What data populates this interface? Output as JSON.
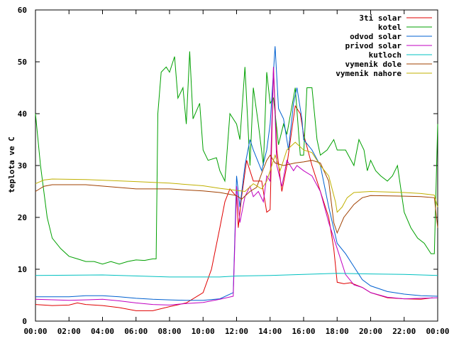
{
  "chart_data": {
    "type": "line",
    "title": "",
    "xlabel": "",
    "ylabel": "teplota ve C",
    "xlim": [
      0,
      24
    ],
    "ylim": [
      0,
      60
    ],
    "x_ticks": [
      0,
      2,
      4,
      6,
      8,
      10,
      12,
      14,
      16,
      18,
      20,
      22,
      24
    ],
    "x_tick_labels": [
      "00:00",
      "02:00",
      "04:00",
      "06:00",
      "08:00",
      "10:00",
      "12:00",
      "14:00",
      "16:00",
      "18:00",
      "20:00",
      "22:00",
      "00:00"
    ],
    "y_ticks": [
      0,
      10,
      20,
      30,
      40,
      50,
      60
    ],
    "y_tick_labels": [
      "0",
      "10",
      "20",
      "30",
      "40",
      "50",
      "60"
    ],
    "grid": false,
    "legend_position": "top-right",
    "series": [
      {
        "name": "3ti solar",
        "color": "#e00000",
        "points": [
          [
            0,
            3.2
          ],
          [
            1,
            3.0
          ],
          [
            2,
            3.1
          ],
          [
            2.5,
            3.5
          ],
          [
            3,
            3.2
          ],
          [
            4,
            3.0
          ],
          [
            5,
            2.6
          ],
          [
            6,
            2.0
          ],
          [
            7,
            2.0
          ],
          [
            8,
            2.8
          ],
          [
            9,
            3.5
          ],
          [
            10,
            5.5
          ],
          [
            10.5,
            10
          ],
          [
            11,
            18
          ],
          [
            11.3,
            23
          ],
          [
            11.6,
            25.5
          ],
          [
            12,
            24
          ],
          [
            12.1,
            18
          ],
          [
            12.3,
            24
          ],
          [
            12.6,
            31
          ],
          [
            13,
            27
          ],
          [
            13.5,
            27
          ],
          [
            13.8,
            21
          ],
          [
            14,
            21.5
          ],
          [
            14.2,
            49
          ],
          [
            14.4,
            33
          ],
          [
            14.7,
            25
          ],
          [
            15,
            30
          ],
          [
            15.3,
            37
          ],
          [
            15.5,
            41.5
          ],
          [
            15.8,
            40
          ],
          [
            16,
            36
          ],
          [
            16.5,
            30
          ],
          [
            17,
            25
          ],
          [
            17.5,
            20
          ],
          [
            17.8,
            14
          ],
          [
            18,
            7.5
          ],
          [
            18.4,
            7.2
          ],
          [
            18.8,
            7.4
          ],
          [
            19.5,
            6.5
          ],
          [
            20,
            5.5
          ],
          [
            21,
            4.5
          ],
          [
            22,
            4.3
          ],
          [
            23,
            4.2
          ],
          [
            23.7,
            4.5
          ]
        ]
      },
      {
        "name": "kotel",
        "color": "#00a000",
        "points": [
          [
            0,
            40
          ],
          [
            0.3,
            30
          ],
          [
            0.7,
            20
          ],
          [
            1,
            16
          ],
          [
            1.5,
            14
          ],
          [
            2,
            12.5
          ],
          [
            2.5,
            12
          ],
          [
            3,
            11.5
          ],
          [
            3.5,
            11.5
          ],
          [
            4,
            11
          ],
          [
            4.5,
            11.5
          ],
          [
            5,
            11
          ],
          [
            5.5,
            11.5
          ],
          [
            6,
            11.8
          ],
          [
            6.5,
            11.7
          ],
          [
            7,
            12
          ],
          [
            7.2,
            12
          ],
          [
            7.3,
            40
          ],
          [
            7.5,
            48
          ],
          [
            7.8,
            49
          ],
          [
            8,
            48
          ],
          [
            8.3,
            51
          ],
          [
            8.5,
            43
          ],
          [
            8.8,
            45
          ],
          [
            9,
            38
          ],
          [
            9.2,
            52
          ],
          [
            9.4,
            39
          ],
          [
            9.8,
            42
          ],
          [
            10,
            33
          ],
          [
            10.3,
            31
          ],
          [
            10.8,
            31.5
          ],
          [
            11,
            29
          ],
          [
            11.3,
            27
          ],
          [
            11.6,
            40
          ],
          [
            12,
            38
          ],
          [
            12.2,
            35
          ],
          [
            12.5,
            49
          ],
          [
            12.8,
            30
          ],
          [
            13,
            45
          ],
          [
            13.3,
            38
          ],
          [
            13.6,
            30
          ],
          [
            13.8,
            48
          ],
          [
            14,
            42
          ],
          [
            14.2,
            43
          ],
          [
            14.5,
            34
          ],
          [
            14.8,
            38
          ],
          [
            15,
            36
          ],
          [
            15.5,
            45
          ],
          [
            15.8,
            32
          ],
          [
            16,
            32
          ],
          [
            16.2,
            45
          ],
          [
            16.5,
            45
          ],
          [
            16.8,
            35
          ],
          [
            17,
            32
          ],
          [
            17.4,
            33
          ],
          [
            17.8,
            35
          ],
          [
            18,
            33
          ],
          [
            18.5,
            33
          ],
          [
            19,
            30
          ],
          [
            19.3,
            35
          ],
          [
            19.6,
            33
          ],
          [
            19.8,
            29
          ],
          [
            20,
            31
          ],
          [
            20.3,
            29
          ],
          [
            20.6,
            28
          ],
          [
            21,
            27
          ],
          [
            21.3,
            28
          ],
          [
            21.6,
            30
          ],
          [
            22,
            21
          ],
          [
            22.4,
            18
          ],
          [
            22.8,
            16
          ],
          [
            23.2,
            15
          ],
          [
            23.6,
            13
          ],
          [
            23.8,
            13
          ],
          [
            24,
            38
          ]
        ]
      },
      {
        "name": "odvod solar",
        "color": "#0060d0",
        "points": [
          [
            0,
            4.7
          ],
          [
            2,
            4.7
          ],
          [
            3,
            4.9
          ],
          [
            4,
            4.9
          ],
          [
            5,
            4.7
          ],
          [
            6,
            4.4
          ],
          [
            7,
            4.2
          ],
          [
            8,
            4.1
          ],
          [
            9,
            4.0
          ],
          [
            10,
            4.0
          ],
          [
            11,
            4.3
          ],
          [
            11.8,
            5.5
          ],
          [
            12,
            28
          ],
          [
            12.2,
            22
          ],
          [
            12.5,
            30
          ],
          [
            12.8,
            35
          ],
          [
            13,
            33
          ],
          [
            13.5,
            29
          ],
          [
            13.8,
            33
          ],
          [
            14,
            38
          ],
          [
            14.3,
            53
          ],
          [
            14.5,
            41
          ],
          [
            14.8,
            39
          ],
          [
            15.1,
            33
          ],
          [
            15.4,
            42
          ],
          [
            15.6,
            45
          ],
          [
            15.9,
            39
          ],
          [
            16,
            35
          ],
          [
            16.5,
            33
          ],
          [
            17,
            30
          ],
          [
            17.5,
            22
          ],
          [
            18,
            15
          ],
          [
            18.5,
            13
          ],
          [
            19,
            10.5
          ],
          [
            19.5,
            8
          ],
          [
            20,
            6.8
          ],
          [
            21,
            5.7
          ],
          [
            22,
            5.2
          ],
          [
            23,
            4.9
          ],
          [
            24,
            4.8
          ]
        ]
      },
      {
        "name": "privod solar",
        "color": "#c000c0",
        "points": [
          [
            0,
            4.2
          ],
          [
            2,
            4.0
          ],
          [
            4,
            4.2
          ],
          [
            5,
            3.9
          ],
          [
            6,
            3.5
          ],
          [
            7,
            3.2
          ],
          [
            8,
            3.1
          ],
          [
            9,
            3.4
          ],
          [
            10,
            3.6
          ],
          [
            11,
            4.2
          ],
          [
            11.8,
            4.8
          ],
          [
            12,
            26
          ],
          [
            12.2,
            19
          ],
          [
            12.5,
            24
          ],
          [
            12.8,
            26
          ],
          [
            13,
            24
          ],
          [
            13.3,
            25
          ],
          [
            13.6,
            23
          ],
          [
            13.8,
            28
          ],
          [
            14,
            27
          ],
          [
            14.2,
            49
          ],
          [
            14.4,
            30
          ],
          [
            14.7,
            26
          ],
          [
            15,
            31
          ],
          [
            15.4,
            29
          ],
          [
            15.6,
            30
          ],
          [
            15.8,
            29.5
          ],
          [
            16,
            29
          ],
          [
            16.5,
            28
          ],
          [
            17,
            25
          ],
          [
            17.5,
            19
          ],
          [
            18,
            14
          ],
          [
            18.5,
            9
          ],
          [
            19,
            7
          ],
          [
            19.5,
            6.5
          ],
          [
            20,
            5.5
          ],
          [
            21,
            4.6
          ],
          [
            22,
            4.3
          ],
          [
            23,
            4.4
          ],
          [
            24,
            4.5
          ]
        ]
      },
      {
        "name": "kutloch",
        "color": "#00c0c0",
        "points": [
          [
            0,
            8.8
          ],
          [
            4,
            8.9
          ],
          [
            8,
            8.5
          ],
          [
            11,
            8.5
          ],
          [
            12,
            8.7
          ],
          [
            14,
            8.8
          ],
          [
            16,
            9.0
          ],
          [
            18,
            9.2
          ],
          [
            20,
            9.1
          ],
          [
            22,
            9.0
          ],
          [
            24,
            8.8
          ]
        ]
      },
      {
        "name": "vymenik dole",
        "color": "#a04000",
        "points": [
          [
            0,
            25
          ],
          [
            0.5,
            26
          ],
          [
            1,
            26.3
          ],
          [
            3,
            26.3
          ],
          [
            6,
            25.5
          ],
          [
            8,
            25.5
          ],
          [
            10,
            25.1
          ],
          [
            11,
            24.8
          ],
          [
            12,
            24.2
          ],
          [
            12.3,
            23.5
          ],
          [
            12.8,
            25
          ],
          [
            13.2,
            25.8
          ],
          [
            13.5,
            28.5
          ],
          [
            13.8,
            31
          ],
          [
            14,
            32
          ],
          [
            14.3,
            30.5
          ],
          [
            14.8,
            30
          ],
          [
            15.5,
            30.5
          ],
          [
            16,
            30.7
          ],
          [
            16.5,
            31
          ],
          [
            17,
            30.5
          ],
          [
            17.5,
            27
          ],
          [
            17.8,
            19
          ],
          [
            18,
            17
          ],
          [
            18.4,
            20
          ],
          [
            19,
            22.5
          ],
          [
            19.5,
            23.8
          ],
          [
            20,
            24.2
          ],
          [
            22,
            24.1
          ],
          [
            23,
            24.0
          ],
          [
            23.8,
            23.8
          ],
          [
            24,
            18
          ]
        ]
      },
      {
        "name": "vymenik nahore",
        "color": "#c0b000",
        "points": [
          [
            0,
            26.5
          ],
          [
            0.5,
            27.2
          ],
          [
            1,
            27.4
          ],
          [
            3,
            27.3
          ],
          [
            6,
            26.9
          ],
          [
            8,
            26.6
          ],
          [
            10,
            26.1
          ],
          [
            11,
            25.6
          ],
          [
            12,
            25.2
          ],
          [
            12.5,
            25.0
          ],
          [
            13,
            26.5
          ],
          [
            13.5,
            25.5
          ],
          [
            13.8,
            27
          ],
          [
            14,
            29
          ],
          [
            14.3,
            32
          ],
          [
            14.6,
            29
          ],
          [
            15,
            33
          ],
          [
            15.5,
            34.5
          ],
          [
            16,
            33
          ],
          [
            16.5,
            32.5
          ],
          [
            17,
            30
          ],
          [
            17.5,
            28
          ],
          [
            17.9,
            23
          ],
          [
            18,
            21
          ],
          [
            18.3,
            22
          ],
          [
            18.6,
            23.8
          ],
          [
            19,
            24.8
          ],
          [
            20,
            25
          ],
          [
            22,
            24.8
          ],
          [
            23,
            24.6
          ],
          [
            23.8,
            24.3
          ],
          [
            24,
            22
          ]
        ]
      }
    ]
  }
}
